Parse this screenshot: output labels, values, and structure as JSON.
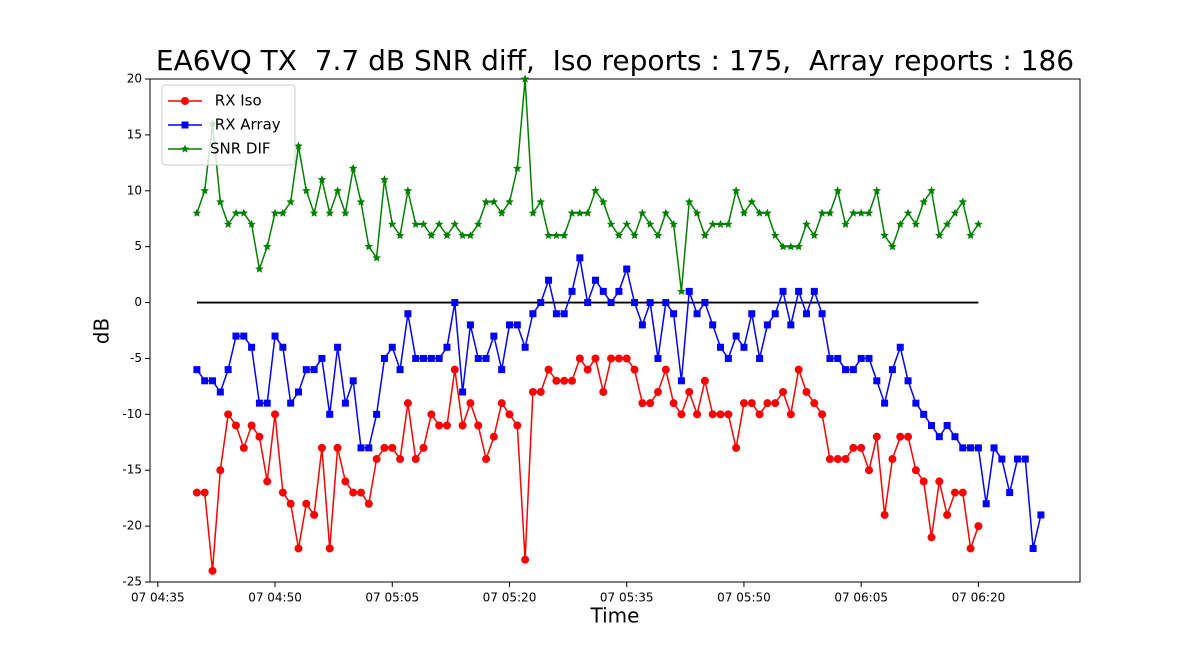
{
  "chart_data": {
    "type": "line",
    "title": "EA6VQ TX  7.7 dB SNR diff,  Iso reports : 175,  Array reports : 186",
    "xlabel": "Time",
    "ylabel": "dB",
    "x": [
      "07 04:40",
      "07 04:41",
      "07 04:42",
      "07 04:43",
      "07 04:44",
      "07 04:45",
      "07 04:46",
      "07 04:47",
      "07 04:48",
      "07 04:49",
      "07 04:50",
      "07 04:51",
      "07 04:52",
      "07 04:53",
      "07 04:54",
      "07 04:55",
      "07 04:56",
      "07 04:57",
      "07 04:58",
      "07 04:59",
      "07 05:00",
      "07 05:01",
      "07 05:02",
      "07 05:03",
      "07 05:04",
      "07 05:05",
      "07 05:06",
      "07 05:07",
      "07 05:08",
      "07 05:09",
      "07 05:10",
      "07 05:11",
      "07 05:12",
      "07 05:13",
      "07 05:14",
      "07 05:15",
      "07 05:16",
      "07 05:17",
      "07 05:18",
      "07 05:19",
      "07 05:20",
      "07 05:21",
      "07 05:22",
      "07 05:23",
      "07 05:24",
      "07 05:25",
      "07 05:26",
      "07 05:27",
      "07 05:28",
      "07 05:29",
      "07 05:30",
      "07 05:31",
      "07 05:32",
      "07 05:33",
      "07 05:34",
      "07 05:35",
      "07 05:36",
      "07 05:37",
      "07 05:38",
      "07 05:39",
      "07 05:40",
      "07 05:41",
      "07 05:42",
      "07 05:43",
      "07 05:44",
      "07 05:45",
      "07 05:46",
      "07 05:47",
      "07 05:48",
      "07 05:49",
      "07 05:50",
      "07 05:51",
      "07 05:52",
      "07 05:53",
      "07 05:54",
      "07 05:55",
      "07 05:56",
      "07 05:57",
      "07 05:58",
      "07 05:59",
      "07 06:00",
      "07 06:01",
      "07 06:02",
      "07 06:03",
      "07 06:04",
      "07 06:05",
      "07 06:06",
      "07 06:07",
      "07 06:08",
      "07 06:09",
      "07 06:10",
      "07 06:11",
      "07 06:12",
      "07 06:13",
      "07 06:14",
      "07 06:15",
      "07 06:16",
      "07 06:17",
      "07 06:18",
      "07 06:19",
      "07 06:20",
      "07 06:21",
      "07 06:22",
      "07 06:23",
      "07 06:24",
      "07 06:25",
      "07 06:26",
      "07 06:27",
      "07 06:28"
    ],
    "series": [
      {
        "name": " RX Iso",
        "color": "#ff0000",
        "marker": "circle",
        "values": [
          -17,
          -17,
          -24,
          -15,
          -10,
          -11,
          -13,
          -11,
          -12,
          -16,
          -10,
          -17,
          -18,
          -22,
          -18,
          -19,
          -13,
          -22,
          -13,
          -16,
          -17,
          -17,
          -18,
          -14,
          -13,
          -13,
          -14,
          -9,
          -14,
          -13,
          -10,
          -11,
          -11,
          -6,
          -11,
          -9,
          -11,
          -14,
          -12,
          -9,
          -10,
          -11,
          -23,
          -8,
          -8,
          -6,
          -7,
          -7,
          -7,
          -5,
          -6,
          -5,
          -8,
          -5,
          -5,
          -5,
          -6,
          -9,
          -9,
          -8,
          -6,
          -9,
          -10,
          -8,
          -10,
          -7,
          -10,
          -10,
          -10,
          -13,
          -9,
          -9,
          -10,
          -9,
          -9,
          -8,
          -10,
          -6,
          -8,
          -9,
          -10,
          -14,
          -14,
          -14,
          -13,
          -13,
          -15,
          -12,
          -19,
          -14,
          -12,
          -12,
          -15,
          -16,
          -21,
          -16,
          -19,
          -17,
          -17,
          -22,
          -20,
          null,
          null,
          null,
          null,
          null,
          null,
          null,
          null
        ]
      },
      {
        "name": " RX Array",
        "color": "#0000ff",
        "marker": "square",
        "values": [
          -6,
          -7,
          -7,
          -8,
          -6,
          -3,
          -3,
          -4,
          -9,
          -9,
          -3,
          -4,
          -9,
          -8,
          -6,
          -6,
          -5,
          -10,
          -4,
          -9,
          -7,
          -13,
          -13,
          -10,
          -5,
          -4,
          -6,
          -1,
          -5,
          -5,
          -5,
          -5,
          -4,
          0,
          -8,
          -2,
          -5,
          -5,
          -3,
          -6,
          -2,
          -2,
          -4,
          -1,
          0,
          2,
          -1,
          -1,
          1,
          4,
          0,
          2,
          1,
          0,
          1,
          3,
          0,
          -2,
          0,
          -5,
          0,
          -1,
          -7,
          1,
          -1,
          0,
          -2,
          -4,
          -5,
          -3,
          -4,
          -1,
          -5,
          -2,
          -1,
          1,
          -2,
          1,
          -1,
          1,
          -1,
          -5,
          -5,
          -6,
          -6,
          -5,
          -5,
          -7,
          -9,
          -6,
          -4,
          -7,
          -9,
          -10,
          -11,
          -12,
          -11,
          -12,
          -13,
          -13,
          -13,
          -18,
          -13,
          -14,
          -17,
          -14,
          -14,
          -22,
          -19
        ]
      },
      {
        "name": "SNR DIF",
        "color": "#008000",
        "marker": "star",
        "values": [
          8,
          10,
          16,
          9,
          7,
          8,
          8,
          7,
          3,
          5,
          8,
          8,
          9,
          14,
          10,
          8,
          11,
          8,
          10,
          8,
          12,
          9,
          5,
          4,
          11,
          7,
          6,
          10,
          7,
          7,
          6,
          7,
          6,
          7,
          6,
          6,
          7,
          9,
          9,
          8,
          9,
          12,
          20,
          8,
          9,
          6,
          6,
          6,
          8,
          8,
          8,
          10,
          9,
          7,
          6,
          7,
          6,
          8,
          7,
          6,
          8,
          7,
          1,
          9,
          8,
          6,
          7,
          7,
          7,
          10,
          8,
          9,
          8,
          8,
          6,
          5,
          5,
          5,
          7,
          6,
          8,
          8,
          10,
          7,
          8,
          8,
          8,
          10,
          6,
          5,
          7,
          8,
          7,
          9,
          10,
          6,
          7,
          8,
          9,
          6,
          7,
          null,
          null,
          null,
          null,
          null,
          null,
          null,
          null
        ]
      }
    ],
    "reference_line": {
      "y": 0,
      "x": [
        "07 04:40",
        "07 06:20"
      ],
      "color": "#000000"
    },
    "xlim": [
      "07 04:34",
      "07 06:33"
    ],
    "xticks": [
      "07 04:35",
      "07 04:50",
      "07 05:05",
      "07 05:20",
      "07 05:35",
      "07 05:50",
      "07 06:05",
      "07 06:20"
    ],
    "ylim": [
      -25,
      20
    ],
    "yticks": [
      -25,
      -20,
      -15,
      -10,
      -5,
      0,
      5,
      10,
      15,
      20
    ],
    "legend": "upper left",
    "grid": false
  }
}
